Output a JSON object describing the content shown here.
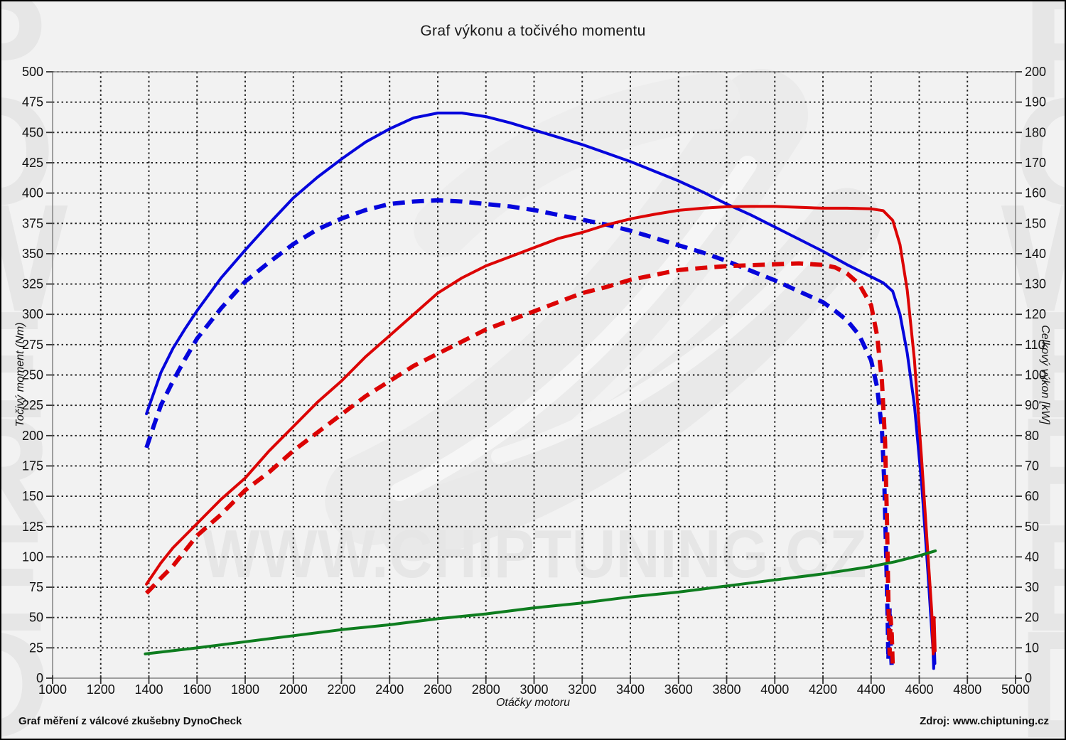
{
  "footer": {
    "left": "Graf měření z válcové zkušebny DynoCheck",
    "right": "Zdroj: www.chiptuning.cz"
  },
  "chart_data": {
    "type": "line",
    "title": "Graf výkonu a točivého momentu",
    "grid": "dotted",
    "grid_color": "#1c1c1c",
    "frame_color": "#8a8a8a",
    "x_axis": {
      "label": "Otáčky motoru",
      "min": 1000,
      "max": 5000,
      "step": 200
    },
    "y_left": {
      "label": "Točivý moment (Nm)",
      "min": 0,
      "max": 500,
      "step": 25
    },
    "y_right": {
      "label": "Celkový výkon [kW]",
      "min": 0,
      "max": 200,
      "step": 10
    },
    "watermarks": {
      "center_text": "WWW.CHIPTUNING.CZ",
      "side_text": "POWERED",
      "color": "#e6e6e6"
    },
    "series": [
      {
        "name": "torque-tuned",
        "axis": "left",
        "color": "#0505dc",
        "style": "solid",
        "width": 4,
        "points": [
          [
            1390,
            218
          ],
          [
            1420,
            235
          ],
          [
            1450,
            252
          ],
          [
            1500,
            272
          ],
          [
            1550,
            288
          ],
          [
            1600,
            303
          ],
          [
            1700,
            330
          ],
          [
            1800,
            353
          ],
          [
            1900,
            375
          ],
          [
            2000,
            396
          ],
          [
            2100,
            413
          ],
          [
            2200,
            428
          ],
          [
            2300,
            442
          ],
          [
            2400,
            453
          ],
          [
            2500,
            462
          ],
          [
            2600,
            466
          ],
          [
            2700,
            466
          ],
          [
            2800,
            463
          ],
          [
            2900,
            458
          ],
          [
            3000,
            452
          ],
          [
            3100,
            446
          ],
          [
            3200,
            440
          ],
          [
            3300,
            433
          ],
          [
            3400,
            426
          ],
          [
            3500,
            418
          ],
          [
            3600,
            410
          ],
          [
            3700,
            401
          ],
          [
            3800,
            391
          ],
          [
            3900,
            382
          ],
          [
            4000,
            372
          ],
          [
            4100,
            362
          ],
          [
            4200,
            352
          ],
          [
            4300,
            341
          ],
          [
            4400,
            331
          ],
          [
            4450,
            326
          ],
          [
            4490,
            319
          ],
          [
            4520,
            300
          ],
          [
            4550,
            268
          ],
          [
            4580,
            225
          ],
          [
            4610,
            160
          ],
          [
            4635,
            90
          ],
          [
            4650,
            45
          ],
          [
            4657,
            24
          ],
          [
            4660,
            8
          ],
          [
            4663,
            25
          ],
          [
            4665,
            12
          ]
        ]
      },
      {
        "name": "torque-original",
        "axis": "left",
        "color": "#0505dc",
        "style": "dashed",
        "width": 6,
        "points": [
          [
            1390,
            190
          ],
          [
            1420,
            208
          ],
          [
            1450,
            225
          ],
          [
            1500,
            245
          ],
          [
            1550,
            263
          ],
          [
            1600,
            280
          ],
          [
            1700,
            305
          ],
          [
            1800,
            327
          ],
          [
            1900,
            343
          ],
          [
            2000,
            358
          ],
          [
            2100,
            370
          ],
          [
            2200,
            379
          ],
          [
            2300,
            386
          ],
          [
            2400,
            391
          ],
          [
            2500,
            393
          ],
          [
            2600,
            394
          ],
          [
            2700,
            393
          ],
          [
            2800,
            391
          ],
          [
            2900,
            389
          ],
          [
            3000,
            386
          ],
          [
            3100,
            382
          ],
          [
            3200,
            378
          ],
          [
            3300,
            374
          ],
          [
            3400,
            369
          ],
          [
            3500,
            363
          ],
          [
            3600,
            357
          ],
          [
            3700,
            351
          ],
          [
            3800,
            344
          ],
          [
            3900,
            336
          ],
          [
            4000,
            328
          ],
          [
            4100,
            319
          ],
          [
            4200,
            310
          ],
          [
            4250,
            303
          ],
          [
            4300,
            295
          ],
          [
            4350,
            283
          ],
          [
            4400,
            262
          ],
          [
            4425,
            240
          ],
          [
            4445,
            205
          ],
          [
            4455,
            160
          ],
          [
            4462,
            105
          ],
          [
            4468,
            55
          ],
          [
            4472,
            15
          ],
          [
            4477,
            58
          ],
          [
            4482,
            25
          ],
          [
            4486,
            8
          ]
        ]
      },
      {
        "name": "power-tuned",
        "axis": "right",
        "color": "#dc0404",
        "style": "solid",
        "width": 4,
        "points": [
          [
            1390,
            31
          ],
          [
            1450,
            38
          ],
          [
            1500,
            43
          ],
          [
            1600,
            51
          ],
          [
            1700,
            59
          ],
          [
            1800,
            66
          ],
          [
            1900,
            75
          ],
          [
            2000,
            83
          ],
          [
            2100,
            91
          ],
          [
            2200,
            98
          ],
          [
            2300,
            106
          ],
          [
            2400,
            113
          ],
          [
            2500,
            120
          ],
          [
            2600,
            127
          ],
          [
            2700,
            132
          ],
          [
            2800,
            136
          ],
          [
            2900,
            139
          ],
          [
            3000,
            142
          ],
          [
            3100,
            145
          ],
          [
            3200,
            147
          ],
          [
            3300,
            149.5
          ],
          [
            3400,
            151.5
          ],
          [
            3500,
            153
          ],
          [
            3600,
            154.3
          ],
          [
            3700,
            155
          ],
          [
            3800,
            155.5
          ],
          [
            3900,
            155.6
          ],
          [
            4000,
            155.6
          ],
          [
            4100,
            155.3
          ],
          [
            4200,
            155
          ],
          [
            4300,
            155
          ],
          [
            4400,
            154.8
          ],
          [
            4450,
            154.2
          ],
          [
            4490,
            151
          ],
          [
            4520,
            143
          ],
          [
            4550,
            128
          ],
          [
            4580,
            105
          ],
          [
            4610,
            72
          ],
          [
            4635,
            42
          ],
          [
            4652,
            22
          ],
          [
            4658,
            8
          ],
          [
            4662,
            20
          ],
          [
            4666,
            9
          ]
        ]
      },
      {
        "name": "power-original",
        "axis": "right",
        "color": "#dc0404",
        "style": "dashed",
        "width": 6,
        "points": [
          [
            1390,
            28
          ],
          [
            1450,
            33
          ],
          [
            1500,
            37
          ],
          [
            1600,
            47
          ],
          [
            1700,
            54
          ],
          [
            1800,
            62
          ],
          [
            1900,
            68
          ],
          [
            2000,
            75
          ],
          [
            2100,
            81
          ],
          [
            2200,
            87
          ],
          [
            2300,
            93
          ],
          [
            2400,
            98
          ],
          [
            2500,
            103
          ],
          [
            2600,
            107
          ],
          [
            2700,
            111
          ],
          [
            2800,
            115
          ],
          [
            2900,
            118
          ],
          [
            3000,
            121
          ],
          [
            3100,
            124
          ],
          [
            3200,
            127
          ],
          [
            3300,
            129
          ],
          [
            3400,
            131.4
          ],
          [
            3500,
            133
          ],
          [
            3600,
            134.6
          ],
          [
            3700,
            135.3
          ],
          [
            3800,
            135.9
          ],
          [
            3900,
            136.2
          ],
          [
            4000,
            136.5
          ],
          [
            4100,
            136.8
          ],
          [
            4200,
            136.3
          ],
          [
            4250,
            135.5
          ],
          [
            4300,
            133.5
          ],
          [
            4350,
            130
          ],
          [
            4400,
            123
          ],
          [
            4425,
            113
          ],
          [
            4445,
            98
          ],
          [
            4458,
            78
          ],
          [
            4466,
            52
          ],
          [
            4472,
            25
          ],
          [
            4477,
            8
          ],
          [
            4481,
            20
          ],
          [
            4486,
            14
          ],
          [
            4490,
            4
          ]
        ]
      },
      {
        "name": "loss-curve",
        "axis": "left",
        "color": "#0e7d1f",
        "style": "solid",
        "width": 4,
        "points": [
          [
            1385,
            20
          ],
          [
            1600,
            25
          ],
          [
            1800,
            30
          ],
          [
            2000,
            35
          ],
          [
            2200,
            40
          ],
          [
            2400,
            44
          ],
          [
            2600,
            49
          ],
          [
            2800,
            53
          ],
          [
            3000,
            58
          ],
          [
            3200,
            62
          ],
          [
            3400,
            67
          ],
          [
            3600,
            71
          ],
          [
            3800,
            76
          ],
          [
            4000,
            81
          ],
          [
            4200,
            86
          ],
          [
            4400,
            92
          ],
          [
            4500,
            96
          ],
          [
            4600,
            101
          ],
          [
            4667,
            105
          ]
        ]
      }
    ]
  }
}
